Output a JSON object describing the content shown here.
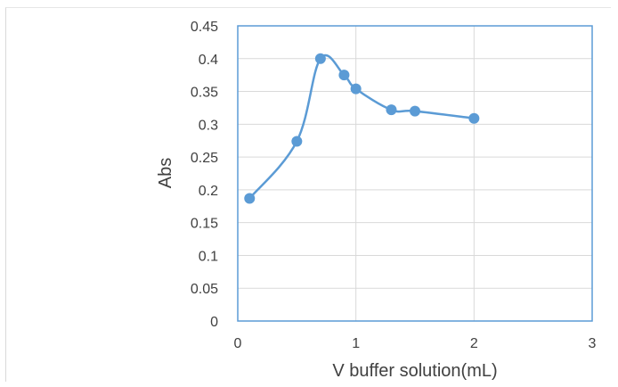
{
  "chart_data": {
    "type": "scatter",
    "title": "",
    "xlabel": "V buffer solution(mL)",
    "ylabel": "Abs",
    "xlim": [
      0,
      3
    ],
    "ylim": [
      0,
      0.45
    ],
    "x_ticks": [
      0,
      1,
      2,
      3
    ],
    "x_tick_labels": [
      "0",
      "1",
      "2",
      "3"
    ],
    "y_ticks": [
      0,
      0.05,
      0.1,
      0.15,
      0.2,
      0.25,
      0.3,
      0.35,
      0.4,
      0.45
    ],
    "y_tick_labels": [
      "0",
      "0.05",
      "0.1",
      "0.15",
      "0.2",
      "0.25",
      "0.3",
      "0.35",
      "0.4",
      "0.45"
    ],
    "grid": true,
    "smooth_line": true,
    "series": [
      {
        "x": [
          0.1,
          0.5,
          0.7,
          0.9,
          1.0,
          1.3,
          1.5,
          2.0
        ],
        "y": [
          0.187,
          0.274,
          0.4,
          0.375,
          0.354,
          0.322,
          0.32,
          0.309
        ],
        "color": "#5b9bd5"
      }
    ],
    "colors": {
      "grid": "#d9d9d9",
      "plot_border": "#5b9bd5",
      "text": "#404040"
    }
  }
}
